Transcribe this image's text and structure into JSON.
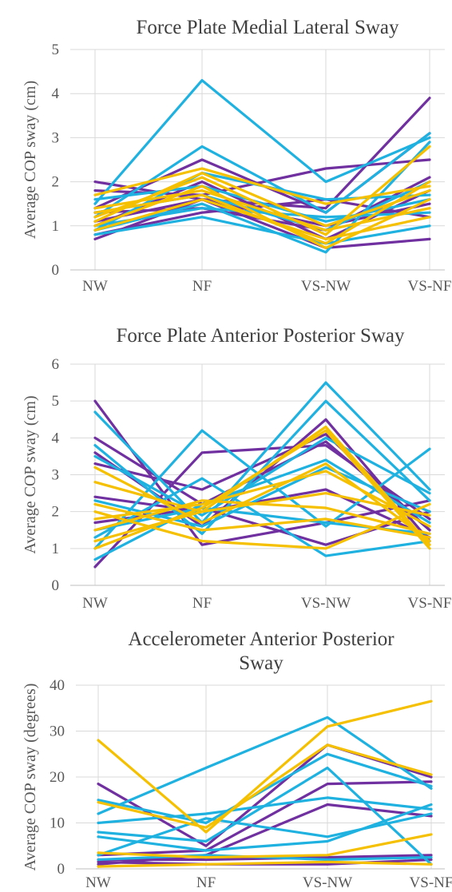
{
  "colors": {
    "purple": "#7030a0",
    "blue": "#1fb2e0",
    "yellow": "#f5c000"
  },
  "chart_data": [
    {
      "type": "line",
      "title": "Force Plate Medial Lateral Sway",
      "title_lines": [
        "Force Plate Medial Lateral Sway"
      ],
      "ylabel": "Average COP sway (cm)",
      "xlabel": "",
      "categories": [
        "NW",
        "NF",
        "VS-NW",
        "VS-NF"
      ],
      "ylim": [
        0,
        5
      ],
      "yticks": [
        0,
        1,
        2,
        3,
        4,
        5
      ],
      "grid": true,
      "legend": "none",
      "series": [
        {
          "color": "purple",
          "values": [
            2.0,
            1.6,
            1.4,
            3.9
          ]
        },
        {
          "color": "purple",
          "values": [
            1.4,
            2.5,
            1.3,
            3.1
          ]
        },
        {
          "color": "purple",
          "values": [
            1.8,
            1.7,
            2.3,
            2.5
          ]
        },
        {
          "color": "purple",
          "values": [
            0.7,
            1.6,
            0.5,
            0.7
          ]
        },
        {
          "color": "purple",
          "values": [
            1.3,
            1.4,
            0.9,
            2.1
          ]
        },
        {
          "color": "purple",
          "values": [
            1.0,
            2.0,
            0.7,
            1.8
          ]
        },
        {
          "color": "purple",
          "values": [
            0.8,
            1.3,
            1.6,
            1.2
          ]
        },
        {
          "color": "purple",
          "values": [
            1.1,
            1.6,
            1.0,
            1.5
          ]
        },
        {
          "color": "blue",
          "values": [
            1.5,
            4.3,
            2.0,
            3.0
          ]
        },
        {
          "color": "blue",
          "values": [
            1.2,
            2.8,
            1.3,
            3.1
          ]
        },
        {
          "color": "blue",
          "values": [
            0.9,
            2.2,
            1.6,
            1.7
          ]
        },
        {
          "color": "blue",
          "values": [
            0.8,
            1.2,
            0.6,
            1.0
          ]
        },
        {
          "color": "blue",
          "values": [
            1.3,
            1.7,
            0.9,
            2.0
          ]
        },
        {
          "color": "blue",
          "values": [
            1.0,
            1.4,
            1.2,
            1.3
          ]
        },
        {
          "color": "blue",
          "values": [
            0.9,
            1.5,
            0.4,
            2.9
          ]
        },
        {
          "color": "blue",
          "values": [
            1.6,
            1.9,
            1.1,
            1.6
          ]
        },
        {
          "color": "yellow",
          "values": [
            1.7,
            2.3,
            1.5,
            1.9
          ]
        },
        {
          "color": "yellow",
          "values": [
            1.2,
            2.1,
            0.8,
            2.8
          ]
        },
        {
          "color": "yellow",
          "values": [
            1.0,
            1.9,
            0.5,
            1.6
          ]
        },
        {
          "color": "yellow",
          "values": [
            1.4,
            1.8,
            0.9,
            1.4
          ]
        },
        {
          "color": "yellow",
          "values": [
            0.9,
            1.6,
            0.7,
            1.2
          ]
        },
        {
          "color": "yellow",
          "values": [
            1.1,
            2.2,
            1.0,
            1.8
          ]
        },
        {
          "color": "yellow",
          "values": [
            1.3,
            1.7,
            0.6,
            2.0
          ]
        }
      ]
    },
    {
      "type": "line",
      "title": "Force Plate Anterior Posterior Sway",
      "title_lines": [
        "Force Plate Anterior Posterior Sway"
      ],
      "ylabel": "Average COP sway (cm)",
      "xlabel": "",
      "categories": [
        "NW",
        "NF",
        "VS-NW",
        "VS-NF"
      ],
      "ylim": [
        0,
        6
      ],
      "yticks": [
        0,
        1,
        2,
        3,
        4,
        5,
        6
      ],
      "grid": true,
      "legend": "none",
      "series": [
        {
          "color": "purple",
          "values": [
            5.0,
            1.1,
            1.7,
            2.3
          ]
        },
        {
          "color": "purple",
          "values": [
            4.0,
            2.2,
            3.9,
            1.5
          ]
        },
        {
          "color": "purple",
          "values": [
            3.6,
            1.6,
            4.5,
            1.2
          ]
        },
        {
          "color": "purple",
          "values": [
            0.5,
            3.6,
            3.8,
            1.8
          ]
        },
        {
          "color": "purple",
          "values": [
            2.4,
            2.0,
            2.6,
            1.3
          ]
        },
        {
          "color": "purple",
          "values": [
            1.7,
            2.1,
            1.1,
            2.0
          ]
        },
        {
          "color": "purple",
          "values": [
            3.3,
            2.6,
            4.1,
            1.5
          ]
        },
        {
          "color": "blue",
          "values": [
            4.7,
            1.7,
            5.5,
            2.6
          ]
        },
        {
          "color": "blue",
          "values": [
            3.8,
            1.4,
            5.0,
            2.3
          ]
        },
        {
          "color": "blue",
          "values": [
            1.0,
            4.2,
            1.6,
            3.7
          ]
        },
        {
          "color": "blue",
          "values": [
            1.3,
            2.9,
            0.8,
            1.2
          ]
        },
        {
          "color": "blue",
          "values": [
            2.3,
            1.6,
            3.2,
            2.0
          ]
        },
        {
          "color": "blue",
          "values": [
            0.7,
            2.2,
            3.4,
            1.7
          ]
        },
        {
          "color": "blue",
          "values": [
            3.5,
            1.9,
            4.0,
            2.5
          ]
        },
        {
          "color": "blue",
          "values": [
            1.5,
            2.1,
            1.7,
            1.4
          ]
        },
        {
          "color": "yellow",
          "values": [
            2.8,
            2.0,
            4.3,
            1.1
          ]
        },
        {
          "color": "yellow",
          "values": [
            1.0,
            2.1,
            4.2,
            1.0
          ]
        },
        {
          "color": "yellow",
          "values": [
            2.0,
            1.2,
            1.0,
            2.2
          ]
        },
        {
          "color": "yellow",
          "values": [
            1.5,
            2.3,
            2.1,
            1.4
          ]
        },
        {
          "color": "yellow",
          "values": [
            3.2,
            1.7,
            3.3,
            1.2
          ]
        },
        {
          "color": "yellow",
          "values": [
            1.2,
            2.0,
            2.5,
            1.9
          ]
        },
        {
          "color": "yellow",
          "values": [
            2.2,
            1.5,
            1.8,
            1.3
          ]
        },
        {
          "color": "yellow",
          "values": [
            1.8,
            2.2,
            3.1,
            1.6
          ]
        }
      ]
    },
    {
      "type": "line",
      "title": "Accelerometer Anterior Posterior Sway",
      "title_lines": [
        "Accelerometer Anterior Posterior",
        "Sway"
      ],
      "ylabel": "Average COP sway (degrees)",
      "xlabel": "",
      "categories": [
        "NW",
        "NF",
        "VS-NW",
        "VS-NF"
      ],
      "ylim": [
        0,
        40
      ],
      "yticks": [
        0,
        10,
        20,
        30,
        40
      ],
      "grid": true,
      "legend": "none",
      "series": [
        {
          "color": "purple",
          "values": [
            18.5,
            5.0,
            27.0,
            20.0
          ]
        },
        {
          "color": "purple",
          "values": [
            3.0,
            4.0,
            18.5,
            19.0
          ]
        },
        {
          "color": "purple",
          "values": [
            1.0,
            3.0,
            14.0,
            11.5
          ]
        },
        {
          "color": "purple",
          "values": [
            2.0,
            2.0,
            2.5,
            3.0
          ]
        },
        {
          "color": "purple",
          "values": [
            1.5,
            1.0,
            1.0,
            2.0
          ]
        },
        {
          "color": "blue",
          "values": [
            12.0,
            22.0,
            33.0,
            17.5
          ]
        },
        {
          "color": "blue",
          "values": [
            15.0,
            10.0,
            25.0,
            18.0
          ]
        },
        {
          "color": "blue",
          "values": [
            8.0,
            6.0,
            22.0,
            1.0
          ]
        },
        {
          "color": "blue",
          "values": [
            10.0,
            12.0,
            15.5,
            13.0
          ]
        },
        {
          "color": "blue",
          "values": [
            7.0,
            4.0,
            6.0,
            14.0
          ]
        },
        {
          "color": "blue",
          "values": [
            3.0,
            11.0,
            7.0,
            12.0
          ]
        },
        {
          "color": "blue",
          "values": [
            2.0,
            3.0,
            2.0,
            2.5
          ]
        },
        {
          "color": "yellow",
          "values": [
            28.0,
            8.0,
            31.0,
            36.5
          ]
        },
        {
          "color": "yellow",
          "values": [
            14.5,
            9.0,
            27.0,
            20.5
          ]
        },
        {
          "color": "yellow",
          "values": [
            3.5,
            2.5,
            3.0,
            7.5
          ]
        },
        {
          "color": "yellow",
          "values": [
            0.5,
            1.0,
            1.5,
            1.0
          ]
        }
      ]
    }
  ]
}
